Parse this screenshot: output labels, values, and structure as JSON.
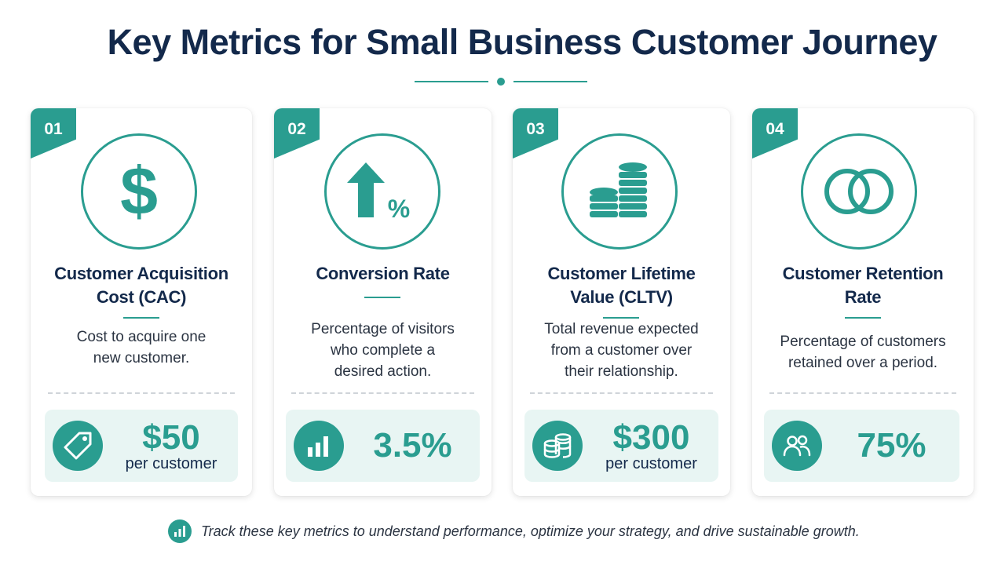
{
  "title": "Key Metrics for Small Business Customer Journey",
  "colors": {
    "accent": "#2a9d90",
    "title": "#13294b",
    "light_bg": "#e8f5f3"
  },
  "cards": [
    {
      "number": "01",
      "icon": "dollar-sign-icon",
      "title_line1": "Customer Acquisition",
      "title_line2": "Cost (CAC)",
      "desc_line1": "Cost to acquire one",
      "desc_line2": "new customer.",
      "desc_line3": "",
      "metric_icon": "price-tag-icon",
      "value": "$50",
      "unit": "per customer"
    },
    {
      "number": "02",
      "icon": "arrow-up-percent-icon",
      "title_line1": "Conversion Rate",
      "title_line2": "",
      "desc_line1": "Percentage of visitors",
      "desc_line2": "who complete a",
      "desc_line3": "desired action.",
      "metric_icon": "bar-chart-icon",
      "value": "3.5%",
      "unit": ""
    },
    {
      "number": "03",
      "icon": "coin-stacks-icon",
      "title_line1": "Customer Lifetime",
      "title_line2": "Value (CLTV)",
      "desc_line1": "Total revenue expected",
      "desc_line2": "from a customer over",
      "desc_line3": "their relationship.",
      "metric_icon": "coins-icon",
      "value": "$300",
      "unit": "per customer"
    },
    {
      "number": "04",
      "icon": "interlocking-rings-icon",
      "title_line1": "Customer Retention",
      "title_line2": "Rate",
      "desc_line1": "Percentage of customers",
      "desc_line2": "retained over a period.",
      "desc_line3": "",
      "metric_icon": "users-icon",
      "value": "75%",
      "unit": ""
    }
  ],
  "footer": {
    "icon": "bar-chart-icon",
    "text": "Track these key metrics to understand performance, optimize your strategy, and drive sustainable growth."
  }
}
